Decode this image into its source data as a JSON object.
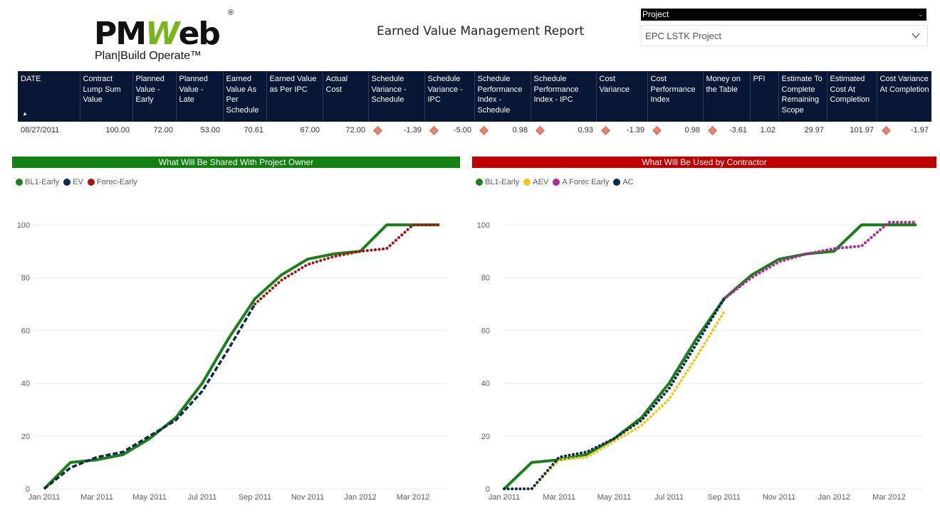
{
  "header": {
    "logo_text": "PMWeb",
    "logo_reg": "®",
    "tagline": "Plan|Build Operate™",
    "title": "Earned Value Management Report"
  },
  "slicer": {
    "label": "Project",
    "value": "EPC LSTK Project"
  },
  "table": {
    "columns": [
      "DATE",
      "Contract Lump Sum Value",
      "Planned Value - Early",
      "Planned Value - Late",
      "Earned Value As Per Schedule",
      "Earned Value as Per IPC",
      "Actual Cost",
      "Schedule Variance - Schedule",
      "Schedule Variance - IPC",
      "Schedule Performance Index - Schedule",
      "Schedule Performance Index - IPC",
      "Cost Variance",
      "Cost Performance Index",
      "Money on the Table",
      "PFI",
      "Estimate To Complete Remaining Scope",
      "Estimated Cost At Completion",
      "Cost Variance At Completion"
    ],
    "sort_indicator": "▲",
    "row": [
      "08/27/2011",
      "100.00",
      "72.00",
      "53.00",
      "70.61",
      "67.00",
      "72.00",
      "-1.39",
      "-5.00",
      "0.98",
      "0.93",
      "-1.39",
      "0.98",
      "-3.61",
      "1.02",
      "29.97",
      "101.97",
      "-1.97"
    ],
    "indicator_color": "#E8826F"
  },
  "chart_data": [
    {
      "type": "line",
      "title": "What Will Be Shared With Project Owner",
      "title_color": "#128112",
      "ylim": [
        0,
        100
      ],
      "yticks": [
        0,
        20,
        40,
        60,
        80,
        100
      ],
      "xlim": [
        0,
        15
      ],
      "xticks": [
        {
          "x": 0,
          "label": "Jan 2011"
        },
        {
          "x": 2,
          "label": "Mar 2011"
        },
        {
          "x": 4,
          "label": "May 2011"
        },
        {
          "x": 6,
          "label": "Jul 2011"
        },
        {
          "x": 8,
          "label": "Sep 2011"
        },
        {
          "x": 10,
          "label": "Nov 2011"
        },
        {
          "x": 12,
          "label": "Jan 2012"
        },
        {
          "x": 14,
          "label": "Mar 2012"
        }
      ],
      "series": [
        {
          "name": "BL1-Early",
          "color": "#1B7F1B",
          "style": "solid",
          "x": [
            0,
            1,
            2,
            3,
            4,
            5,
            6,
            7,
            8,
            9,
            10,
            11,
            12,
            13,
            14,
            15
          ],
          "y": [
            0,
            10,
            11,
            13,
            19,
            27,
            40,
            57,
            72,
            81,
            87,
            89,
            90,
            100,
            100,
            100
          ]
        },
        {
          "name": "EV",
          "color": "#0F2A4F",
          "style": "dashed",
          "x": [
            0,
            1,
            2,
            3,
            4,
            5,
            6,
            7,
            8
          ],
          "y": [
            0,
            8,
            12,
            14,
            20,
            26,
            37,
            53,
            70
          ]
        },
        {
          "name": "Forec-Early",
          "color": "#A31515",
          "style": "dotted",
          "x": [
            8,
            9,
            10,
            11,
            12,
            13,
            14,
            15
          ],
          "y": [
            70,
            79,
            85,
            88,
            90,
            91,
            100,
            100
          ]
        }
      ]
    },
    {
      "type": "line",
      "title": "What Will Be Used by Contractor",
      "title_color": "#C00000",
      "ylim": [
        0,
        100
      ],
      "yticks": [
        0,
        20,
        40,
        60,
        80,
        100
      ],
      "xlim": [
        0,
        15
      ],
      "xticks": [
        {
          "x": 0,
          "label": "Jan 2011"
        },
        {
          "x": 2,
          "label": "Mar 2011"
        },
        {
          "x": 4,
          "label": "May 2011"
        },
        {
          "x": 6,
          "label": "Jul 2011"
        },
        {
          "x": 8,
          "label": "Sep 2011"
        },
        {
          "x": 10,
          "label": "Nov 2011"
        },
        {
          "x": 12,
          "label": "Jan 2012"
        },
        {
          "x": 14,
          "label": "Mar 2012"
        }
      ],
      "series": [
        {
          "name": "BL1-Early",
          "color": "#1B7F1B",
          "style": "solid",
          "x": [
            0,
            1,
            2,
            3,
            4,
            5,
            6,
            7,
            8,
            9,
            10,
            11,
            12,
            13,
            14,
            15
          ],
          "y": [
            0,
            10,
            11,
            13,
            19,
            27,
            40,
            57,
            72,
            81,
            87,
            89,
            90,
            100,
            100,
            100
          ]
        },
        {
          "name": "AEV",
          "color": "#F2C811",
          "style": "dotted",
          "x": [
            1,
            2,
            3,
            4,
            5,
            6,
            7,
            8
          ],
          "y": [
            0,
            11,
            12,
            18,
            24,
            34,
            50,
            67
          ]
        },
        {
          "name": "A Forec Early",
          "color": "#B4259A",
          "style": "dotted",
          "x": [
            8,
            9,
            10,
            11,
            12,
            13,
            14,
            15
          ],
          "y": [
            72,
            80,
            86,
            89,
            91,
            92,
            101,
            101
          ]
        },
        {
          "name": "AC",
          "color": "#0F2A4F",
          "style": "dotted",
          "x": [
            0,
            1,
            2,
            3,
            4,
            5,
            6,
            7,
            8
          ],
          "y": [
            0,
            0,
            12,
            14,
            19,
            26,
            38,
            55,
            72
          ]
        }
      ]
    }
  ]
}
